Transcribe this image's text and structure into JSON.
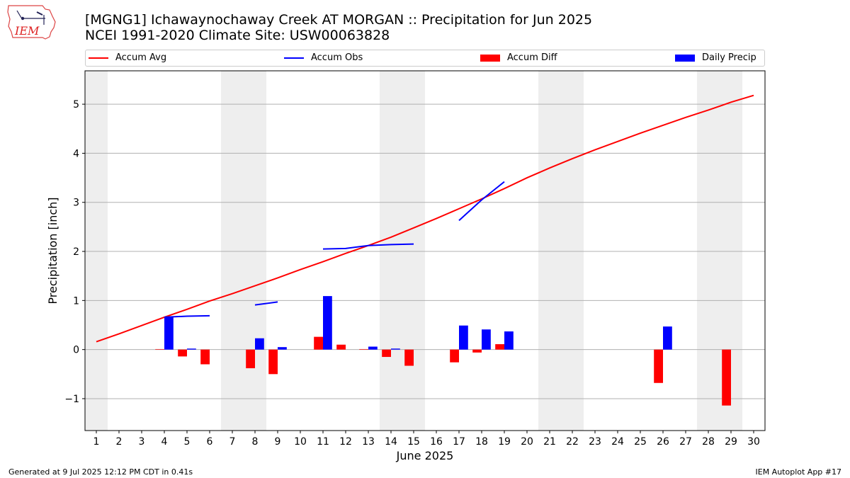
{
  "header": {
    "title_line1": "[MGNG1] Ichawaynochaway Creek  AT MORGAN :: Precipitation for Jun 2025",
    "title_line2": "NCEI 1991-2020 Climate Site: USW00063828",
    "logo_text": "IEM"
  },
  "footer": {
    "generated": "Generated at 9 Jul 2025 12:12 PM CDT in 0.41s",
    "app": "IEM Autoplot App #17"
  },
  "colors": {
    "accum_avg": "#ff0000",
    "accum_obs": "#0000ff",
    "accum_diff": "#ff0000",
    "daily_precip": "#0000ff",
    "weekend_band": "#eeeeee",
    "grid": "#b0b0b0"
  },
  "chart_data": {
    "type": "bar",
    "xlabel": "June 2025",
    "ylabel": "Precipitation [inch]",
    "xlim": [
      0.5,
      30.5
    ],
    "ylim": [
      -1.65,
      5.68
    ],
    "x_ticks": [
      1,
      2,
      3,
      4,
      5,
      6,
      7,
      8,
      9,
      10,
      11,
      12,
      13,
      14,
      15,
      16,
      17,
      18,
      19,
      20,
      21,
      22,
      23,
      24,
      25,
      26,
      27,
      28,
      29,
      30
    ],
    "x_tick_labels": [
      "1",
      "2",
      "3",
      "4",
      "5",
      "6",
      "7",
      "8",
      "9",
      "10",
      "11",
      "12",
      "13",
      "14",
      "15",
      "16",
      "17",
      "18",
      "19",
      "20",
      "21",
      "22",
      "23",
      "24",
      "25",
      "26",
      "27",
      "28",
      "29",
      "30"
    ],
    "y_ticks": [
      -1,
      0,
      1,
      2,
      3,
      4,
      5
    ],
    "y_tick_labels": [
      "−1",
      "0",
      "1",
      "2",
      "3",
      "4",
      "5"
    ],
    "grid": "horizontal",
    "legend_position": "top",
    "weekend_bands": [
      [
        0.5,
        1.5
      ],
      [
        6.5,
        8.5
      ],
      [
        13.5,
        15.5
      ],
      [
        20.5,
        22.5
      ],
      [
        27.5,
        29.5
      ]
    ],
    "series": [
      {
        "name": "Accum Avg",
        "kind": "line",
        "x": [
          1,
          2,
          3,
          4,
          5,
          6,
          7,
          8,
          9,
          10,
          11,
          12,
          13,
          14,
          15,
          16,
          17,
          18,
          19,
          20,
          21,
          22,
          23,
          24,
          25,
          26,
          27,
          28,
          29,
          30
        ],
        "values": [
          0.16,
          0.32,
          0.49,
          0.66,
          0.82,
          0.99,
          1.14,
          1.3,
          1.46,
          1.63,
          1.79,
          1.96,
          2.12,
          2.29,
          2.48,
          2.67,
          2.87,
          3.07,
          3.28,
          3.5,
          3.7,
          3.89,
          4.07,
          4.24,
          4.41,
          4.57,
          4.73,
          4.88,
          5.04,
          5.18
        ]
      },
      {
        "name": "Accum Obs",
        "kind": "line",
        "segments": [
          {
            "x": [
              4,
              5,
              6
            ],
            "values": [
              0.66,
              0.68,
              0.69
            ]
          },
          {
            "x": [
              8,
              9
            ],
            "values": [
              0.91,
              0.97
            ]
          },
          {
            "x": [
              11,
              12,
              13,
              14,
              15
            ],
            "values": [
              2.05,
              2.06,
              2.12,
              2.14,
              2.15
            ]
          },
          {
            "x": [
              17,
              18,
              19
            ],
            "values": [
              2.63,
              3.05,
              3.42
            ]
          }
        ]
      },
      {
        "name": "Accum Diff",
        "kind": "bar",
        "x": [
          4,
          5,
          6,
          8,
          9,
          11,
          12,
          13,
          14,
          15,
          17,
          18,
          19,
          26,
          29
        ],
        "values": [
          0.01,
          -0.14,
          -0.3,
          -0.38,
          -0.5,
          0.26,
          0.1,
          0.01,
          -0.15,
          -0.33,
          -0.26,
          -0.06,
          0.11,
          -0.68,
          -1.14
        ]
      },
      {
        "name": "Daily Precip",
        "kind": "bar",
        "x": [
          4,
          5,
          8,
          9,
          11,
          13,
          14,
          17,
          18,
          19,
          26
        ],
        "values": [
          0.67,
          0.02,
          0.23,
          0.05,
          1.09,
          0.06,
          0.02,
          0.49,
          0.41,
          0.37,
          0.47
        ]
      }
    ]
  }
}
